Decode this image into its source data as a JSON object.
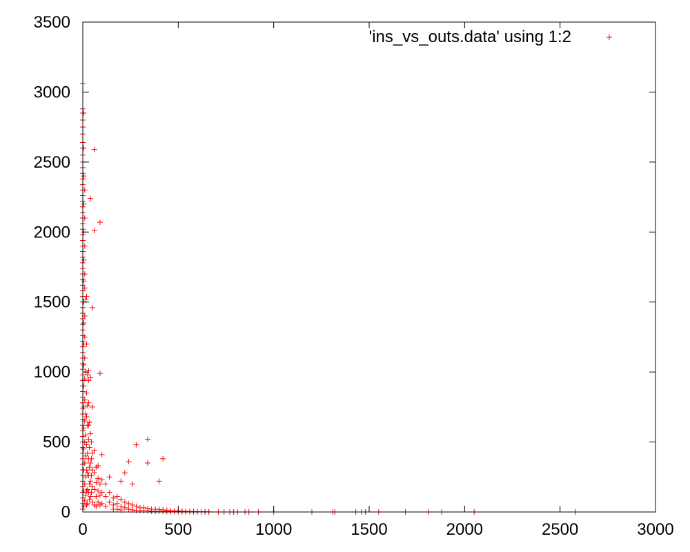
{
  "chart_data": {
    "type": "scatter",
    "title": "",
    "xlabel": "",
    "ylabel": "",
    "xlim": [
      0,
      3000
    ],
    "ylim": [
      0,
      3500
    ],
    "x_ticks": [
      0,
      500,
      1000,
      1500,
      2000,
      2500,
      3000
    ],
    "y_ticks": [
      0,
      500,
      1000,
      1500,
      2000,
      2500,
      3000,
      3500
    ],
    "x_tick_labels": [
      "0",
      "500",
      "1000",
      "1500",
      "2000",
      "2500",
      "3000"
    ],
    "y_tick_labels": [
      "0",
      "500",
      "1000",
      "1500",
      "2000",
      "2500",
      "3000",
      "3500"
    ],
    "grid": false,
    "legend_position": "top-right",
    "marker": "+",
    "series": [
      {
        "name": "'ins_vs_outs.data' using 1:2",
        "color": "#ff0000",
        "points": [
          [
            0,
            3060
          ],
          [
            0,
            2880
          ],
          [
            0,
            2850
          ],
          [
            0,
            2800
          ],
          [
            0,
            2750
          ],
          [
            0,
            2700
          ],
          [
            0,
            2640
          ],
          [
            0,
            2600
          ],
          [
            0,
            2550
          ],
          [
            0,
            2500
          ],
          [
            0,
            2460
          ],
          [
            0,
            2420
          ],
          [
            0,
            2380
          ],
          [
            0,
            2340
          ],
          [
            0,
            2300
          ],
          [
            0,
            2260
          ],
          [
            0,
            2220
          ],
          [
            0,
            2180
          ],
          [
            0,
            2140
          ],
          [
            0,
            2100
          ],
          [
            0,
            2060
          ],
          [
            0,
            2020
          ],
          [
            0,
            1980
          ],
          [
            0,
            1940
          ],
          [
            0,
            1900
          ],
          [
            0,
            1860
          ],
          [
            0,
            1820
          ],
          [
            0,
            1780
          ],
          [
            0,
            1740
          ],
          [
            0,
            1700
          ],
          [
            0,
            1660
          ],
          [
            0,
            1620
          ],
          [
            0,
            1580
          ],
          [
            0,
            1540
          ],
          [
            0,
            1500
          ],
          [
            0,
            1460
          ],
          [
            0,
            1420
          ],
          [
            0,
            1380
          ],
          [
            0,
            1340
          ],
          [
            0,
            1300
          ],
          [
            0,
            1260
          ],
          [
            0,
            1220
          ],
          [
            0,
            1180
          ],
          [
            0,
            1140
          ],
          [
            0,
            1100
          ],
          [
            0,
            1060
          ],
          [
            0,
            1020
          ],
          [
            0,
            980
          ],
          [
            0,
            940
          ],
          [
            0,
            900
          ],
          [
            0,
            860
          ],
          [
            0,
            820
          ],
          [
            0,
            780
          ],
          [
            0,
            740
          ],
          [
            0,
            700
          ],
          [
            0,
            660
          ],
          [
            0,
            620
          ],
          [
            0,
            580
          ],
          [
            0,
            540
          ],
          [
            0,
            500
          ],
          [
            0,
            460
          ],
          [
            0,
            420
          ],
          [
            0,
            380
          ],
          [
            0,
            340
          ],
          [
            0,
            300
          ],
          [
            0,
            260
          ],
          [
            0,
            220
          ],
          [
            0,
            180
          ],
          [
            0,
            140
          ],
          [
            0,
            100
          ],
          [
            0,
            60
          ],
          [
            0,
            20
          ],
          [
            5,
            2850
          ],
          [
            5,
            2600
          ],
          [
            5,
            2400
          ],
          [
            5,
            2200
          ],
          [
            5,
            2000
          ],
          [
            5,
            1800
          ],
          [
            5,
            1650
          ],
          [
            5,
            1500
          ],
          [
            5,
            1350
          ],
          [
            5,
            1200
          ],
          [
            5,
            1050
          ],
          [
            5,
            900
          ],
          [
            5,
            750
          ],
          [
            5,
            600
          ],
          [
            5,
            450
          ],
          [
            5,
            300
          ],
          [
            5,
            150
          ],
          [
            5,
            40
          ],
          [
            10,
            2300
          ],
          [
            10,
            2100
          ],
          [
            10,
            1900
          ],
          [
            10,
            1700
          ],
          [
            10,
            1600
          ],
          [
            10,
            1400
          ],
          [
            10,
            1250
          ],
          [
            10,
            1100
          ],
          [
            10,
            950
          ],
          [
            10,
            800
          ],
          [
            10,
            650
          ],
          [
            10,
            500
          ],
          [
            10,
            350
          ],
          [
            10,
            200
          ],
          [
            10,
            80
          ],
          [
            15,
            1520
          ],
          [
            15,
            1000
          ],
          [
            15,
            700
          ],
          [
            15,
            550
          ],
          [
            15,
            400
          ],
          [
            15,
            250
          ],
          [
            15,
            120
          ],
          [
            20,
            1540
          ],
          [
            20,
            1200
          ],
          [
            20,
            850
          ],
          [
            20,
            680
          ],
          [
            20,
            480
          ],
          [
            20,
            300
          ],
          [
            20,
            150
          ],
          [
            20,
            50
          ],
          [
            25,
            980
          ],
          [
            25,
            760
          ],
          [
            25,
            620
          ],
          [
            25,
            420
          ],
          [
            25,
            280
          ],
          [
            25,
            160
          ],
          [
            25,
            60
          ],
          [
            30,
            1010
          ],
          [
            30,
            940
          ],
          [
            30,
            780
          ],
          [
            30,
            620
          ],
          [
            30,
            520
          ],
          [
            30,
            380
          ],
          [
            30,
            260
          ],
          [
            30,
            140
          ],
          [
            35,
            640
          ],
          [
            35,
            460
          ],
          [
            35,
            320
          ],
          [
            35,
            200
          ],
          [
            35,
            90
          ],
          [
            40,
            2240
          ],
          [
            40,
            960
          ],
          [
            40,
            560
          ],
          [
            40,
            350
          ],
          [
            40,
            220
          ],
          [
            40,
            110
          ],
          [
            45,
            500
          ],
          [
            45,
            380
          ],
          [
            45,
            260
          ],
          [
            45,
            140
          ],
          [
            50,
            1460
          ],
          [
            50,
            750
          ],
          [
            50,
            420
          ],
          [
            50,
            300
          ],
          [
            50,
            180
          ],
          [
            50,
            70
          ],
          [
            60,
            2590
          ],
          [
            60,
            2010
          ],
          [
            60,
            440
          ],
          [
            60,
            280
          ],
          [
            60,
            160
          ],
          [
            60,
            50
          ],
          [
            70,
            320
          ],
          [
            70,
            210
          ],
          [
            70,
            110
          ],
          [
            70,
            40
          ],
          [
            80,
            330
          ],
          [
            80,
            240
          ],
          [
            80,
            150
          ],
          [
            80,
            70
          ],
          [
            90,
            2070
          ],
          [
            90,
            990
          ],
          [
            90,
            200
          ],
          [
            90,
            120
          ],
          [
            90,
            50
          ],
          [
            100,
            410
          ],
          [
            100,
            230
          ],
          [
            100,
            140
          ],
          [
            100,
            60
          ],
          [
            120,
            200
          ],
          [
            120,
            110
          ],
          [
            120,
            40
          ],
          [
            140,
            250
          ],
          [
            140,
            140
          ],
          [
            140,
            70
          ],
          [
            160,
            100
          ],
          [
            160,
            50
          ],
          [
            160,
            20
          ],
          [
            180,
            110
          ],
          [
            180,
            60
          ],
          [
            180,
            20
          ],
          [
            200,
            220
          ],
          [
            200,
            90
          ],
          [
            200,
            40
          ],
          [
            200,
            15
          ],
          [
            220,
            280
          ],
          [
            220,
            70
          ],
          [
            220,
            30
          ],
          [
            240,
            360
          ],
          [
            240,
            60
          ],
          [
            240,
            20
          ],
          [
            260,
            200
          ],
          [
            260,
            50
          ],
          [
            260,
            15
          ],
          [
            280,
            480
          ],
          [
            280,
            40
          ],
          [
            280,
            10
          ],
          [
            300,
            30
          ],
          [
            300,
            10
          ],
          [
            320,
            30
          ],
          [
            320,
            10
          ],
          [
            340,
            520
          ],
          [
            340,
            350
          ],
          [
            340,
            25
          ],
          [
            340,
            8
          ],
          [
            360,
            20
          ],
          [
            360,
            5
          ],
          [
            380,
            20
          ],
          [
            380,
            5
          ],
          [
            400,
            220
          ],
          [
            400,
            18
          ],
          [
            400,
            5
          ],
          [
            420,
            380
          ],
          [
            420,
            15
          ],
          [
            420,
            3
          ],
          [
            440,
            12
          ],
          [
            440,
            3
          ],
          [
            460,
            10
          ],
          [
            460,
            2
          ],
          [
            480,
            8
          ],
          [
            480,
            2
          ],
          [
            500,
            8
          ],
          [
            500,
            2
          ],
          [
            520,
            6
          ],
          [
            520,
            1
          ],
          [
            540,
            5
          ],
          [
            540,
            1
          ],
          [
            560,
            4
          ],
          [
            560,
            1
          ],
          [
            580,
            3
          ],
          [
            580,
            1
          ],
          [
            600,
            3
          ],
          [
            600,
            1
          ],
          [
            620,
            2
          ],
          [
            620,
            0
          ],
          [
            640,
            2
          ],
          [
            640,
            0
          ],
          [
            660,
            1
          ],
          [
            660,
            0
          ],
          [
            710,
            0
          ],
          [
            740,
            0
          ],
          [
            770,
            0
          ],
          [
            790,
            0
          ],
          [
            810,
            0
          ],
          [
            850,
            0
          ],
          [
            870,
            0
          ],
          [
            920,
            0
          ],
          [
            1000,
            0
          ],
          [
            1200,
            0
          ],
          [
            1310,
            0
          ],
          [
            1320,
            0
          ],
          [
            1430,
            0
          ],
          [
            1460,
            0
          ],
          [
            1480,
            0
          ],
          [
            1550,
            0
          ],
          [
            1690,
            0
          ],
          [
            1810,
            0
          ],
          [
            1880,
            0
          ],
          [
            2050,
            0
          ],
          [
            2580,
            0
          ]
        ]
      }
    ]
  }
}
